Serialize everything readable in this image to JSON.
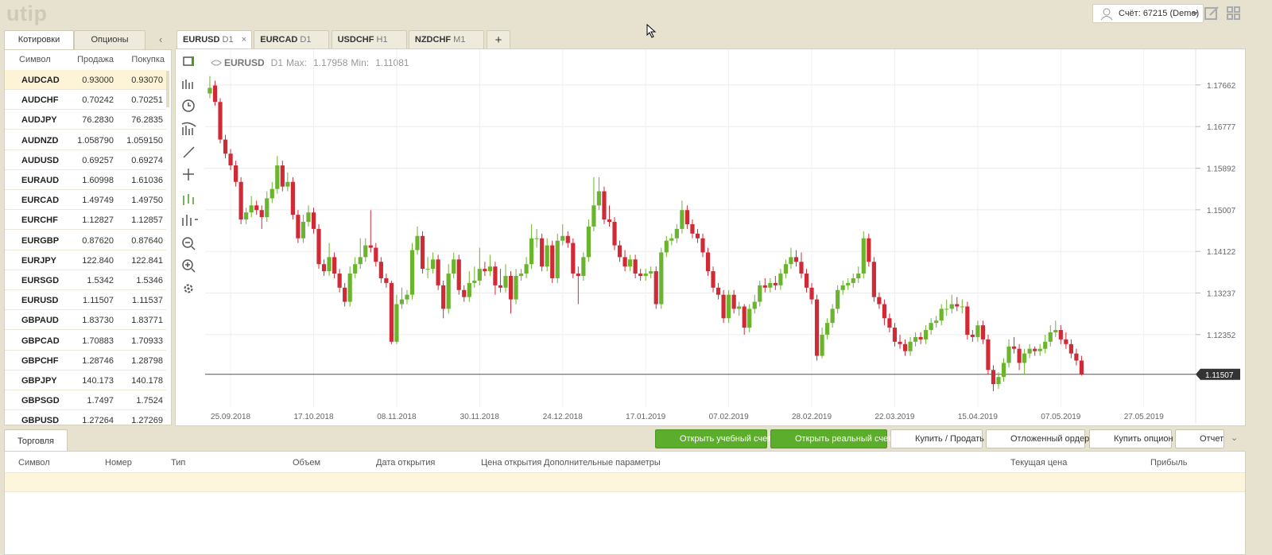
{
  "header": {
    "logo": "utip",
    "account": "Счёт: 67215 (Demo)"
  },
  "quotes": {
    "tabs": [
      "Котировки",
      "Опционы"
    ],
    "columns": [
      "Символ",
      "Продажа",
      "Покупка"
    ],
    "rows": [
      {
        "symbol": "AUDCAD",
        "sell": "0.93000",
        "buy": "0.93070",
        "trend": "down"
      },
      {
        "symbol": "AUDCHF",
        "sell": "0.70242",
        "buy": "0.70251",
        "trend": "down"
      },
      {
        "symbol": "AUDJPY",
        "sell": "76.2830",
        "buy": "76.2835",
        "trend": "down"
      },
      {
        "symbol": "AUDNZD",
        "sell": "1.058790",
        "buy": "1.059150",
        "trend": "down"
      },
      {
        "symbol": "AUDUSD",
        "sell": "0.69257",
        "buy": "0.69274",
        "trend": "down"
      },
      {
        "symbol": "EURAUD",
        "sell": "1.60998",
        "buy": "1.61036",
        "trend": "down"
      },
      {
        "symbol": "EURCAD",
        "sell": "1.49749",
        "buy": "1.49750",
        "trend": "up"
      },
      {
        "symbol": "EURCHF",
        "sell": "1.12827",
        "buy": "1.12857",
        "trend": "up"
      },
      {
        "symbol": "EURGBP",
        "sell": "0.87620",
        "buy": "0.87640",
        "trend": "up"
      },
      {
        "symbol": "EURJPY",
        "sell": "122.840",
        "buy": "122.841",
        "trend": null
      },
      {
        "symbol": "EURSGD",
        "sell": "1.5342",
        "buy": "1.5346",
        "trend": null
      },
      {
        "symbol": "EURUSD",
        "sell": "1.11507",
        "buy": "1.11537",
        "trend": null
      },
      {
        "symbol": "GBPAUD",
        "sell": "1.83730",
        "buy": "1.83771",
        "trend": "up"
      },
      {
        "symbol": "GBPCAD",
        "sell": "1.70883",
        "buy": "1.70933",
        "trend": "up"
      },
      {
        "symbol": "GBPCHF",
        "sell": "1.28746",
        "buy": "1.28798",
        "trend": null
      },
      {
        "symbol": "GBPJPY",
        "sell": "140.173",
        "buy": "140.178",
        "trend": null
      },
      {
        "symbol": "GBPSGD",
        "sell": "1.7497",
        "buy": "1.7524",
        "trend": null
      },
      {
        "symbol": "GBPUSD",
        "sell": "1.27264",
        "buy": "1.27269",
        "trend": null
      }
    ]
  },
  "chart_tabs": [
    {
      "symbol": "EURUSD",
      "timeframe": "D1"
    },
    {
      "symbol": "EURCAD",
      "timeframe": "D1"
    },
    {
      "symbol": "USDCHF",
      "timeframe": "H1"
    },
    {
      "symbol": "NZDCHF",
      "timeframe": "M1"
    }
  ],
  "new_tab": "+",
  "chart_data": {
    "type": "candlestick",
    "symbol": "EURUSD",
    "timeframe": "D1",
    "max_label": "Max:",
    "max": 1.17958,
    "min_label": "Min:",
    "min": 1.11081,
    "up_color": "#6ab42e",
    "down_color": "#d12a37",
    "grid": true,
    "ylim": [
      1.1081,
      1.1842
    ],
    "yticks": [
      1.17662,
      1.16777,
      1.15892,
      1.15007,
      1.14122,
      1.13237,
      1.12352
    ],
    "xlim": [
      -0.3,
      190
    ],
    "xticks": [
      {
        "value": 4,
        "label": "25.09.2018"
      },
      {
        "value": 20,
        "label": "17.10.2018"
      },
      {
        "value": 36,
        "label": "08.11.2018"
      },
      {
        "value": 52,
        "label": "30.11.2018"
      },
      {
        "value": 68,
        "label": "24.12.2018"
      },
      {
        "value": 84,
        "label": "17.01.2019"
      },
      {
        "value": 100,
        "label": "07.02.2019"
      },
      {
        "value": 116,
        "label": "28.02.2019"
      },
      {
        "value": 132,
        "label": "22.03.2019"
      },
      {
        "value": 148,
        "label": "15.04.2019"
      },
      {
        "value": 164,
        "label": "07.05.2019"
      },
      {
        "value": 180,
        "label": "27.05.2019"
      }
    ],
    "current_price": 1.11507,
    "candles": [
      [
        1.1748,
        1.1785,
        1.1738,
        1.176
      ],
      [
        1.1765,
        1.1775,
        1.1722,
        1.173
      ],
      [
        1.173,
        1.1738,
        1.1642,
        1.165
      ],
      [
        1.165,
        1.166,
        1.161,
        1.162
      ],
      [
        1.162,
        1.163,
        1.1585,
        1.1595
      ],
      [
        1.1595,
        1.1605,
        1.155,
        1.156
      ],
      [
        1.156,
        1.157,
        1.147,
        1.148
      ],
      [
        1.148,
        1.1505,
        1.147,
        1.1495
      ],
      [
        1.1495,
        1.153,
        1.1485,
        1.151
      ],
      [
        1.151,
        1.152,
        1.149,
        1.15
      ],
      [
        1.15,
        1.151,
        1.146,
        1.1485
      ],
      [
        1.1485,
        1.154,
        1.1475,
        1.1525
      ],
      [
        1.1525,
        1.156,
        1.1515,
        1.1545
      ],
      [
        1.1545,
        1.1615,
        1.1535,
        1.1595
      ],
      [
        1.1595,
        1.1605,
        1.154,
        1.155
      ],
      [
        1.155,
        1.158,
        1.154,
        1.156
      ],
      [
        1.156,
        1.157,
        1.148,
        1.149
      ],
      [
        1.149,
        1.15,
        1.143,
        1.144
      ],
      [
        1.144,
        1.149,
        1.143,
        1.1475
      ],
      [
        1.1475,
        1.151,
        1.1465,
        1.1495
      ],
      [
        1.1495,
        1.1505,
        1.145,
        1.146
      ],
      [
        1.146,
        1.147,
        1.1375,
        1.1385
      ],
      [
        1.1385,
        1.1395,
        1.136,
        1.137
      ],
      [
        1.137,
        1.143,
        1.136,
        1.14
      ],
      [
        1.14,
        1.141,
        1.1355,
        1.1365
      ],
      [
        1.1365,
        1.1375,
        1.1325,
        1.1335
      ],
      [
        1.1335,
        1.1345,
        1.1295,
        1.1305
      ],
      [
        1.1305,
        1.138,
        1.1295,
        1.1365
      ],
      [
        1.1365,
        1.14,
        1.1355,
        1.1385
      ],
      [
        1.1385,
        1.144,
        1.1375,
        1.14
      ],
      [
        1.14,
        1.144,
        1.139,
        1.1425
      ],
      [
        1.1425,
        1.15,
        1.141,
        1.142
      ],
      [
        1.142,
        1.143,
        1.138,
        1.139
      ],
      [
        1.139,
        1.14,
        1.1345,
        1.1355
      ],
      [
        1.1355,
        1.1365,
        1.1335,
        1.1345
      ],
      [
        1.1345,
        1.135,
        1.1215,
        1.122
      ],
      [
        1.122,
        1.132,
        1.1215,
        1.13
      ],
      [
        1.13,
        1.1335,
        1.129,
        1.131
      ],
      [
        1.131,
        1.133,
        1.13,
        1.132
      ],
      [
        1.132,
        1.143,
        1.131,
        1.1415
      ],
      [
        1.1415,
        1.1465,
        1.1405,
        1.1445
      ],
      [
        1.1445,
        1.1455,
        1.1365,
        1.1375
      ],
      [
        1.1375,
        1.14,
        1.1355,
        1.1375
      ],
      [
        1.1375,
        1.141,
        1.1365,
        1.1395
      ],
      [
        1.1395,
        1.1405,
        1.133,
        1.134
      ],
      [
        1.134,
        1.135,
        1.127,
        1.129
      ],
      [
        1.129,
        1.1385,
        1.128,
        1.1365
      ],
      [
        1.1365,
        1.141,
        1.1355,
        1.1395
      ],
      [
        1.1395,
        1.1405,
        1.132,
        1.133
      ],
      [
        1.133,
        1.134,
        1.1305,
        1.1315
      ],
      [
        1.1315,
        1.137,
        1.1305,
        1.1345
      ],
      [
        1.1345,
        1.138,
        1.1335,
        1.135
      ],
      [
        1.135,
        1.142,
        1.134,
        1.1375
      ],
      [
        1.1375,
        1.139,
        1.136,
        1.137
      ],
      [
        1.137,
        1.1405,
        1.136,
        1.138
      ],
      [
        1.138,
        1.139,
        1.132,
        1.134
      ],
      [
        1.134,
        1.1375,
        1.1325,
        1.1335
      ],
      [
        1.1335,
        1.1385,
        1.1325,
        1.136
      ],
      [
        1.136,
        1.137,
        1.128,
        1.131
      ],
      [
        1.131,
        1.1375,
        1.13,
        1.136
      ],
      [
        1.136,
        1.1375,
        1.135,
        1.1365
      ],
      [
        1.1365,
        1.14,
        1.1355,
        1.1385
      ],
      [
        1.1385,
        1.147,
        1.1375,
        1.144
      ],
      [
        1.144,
        1.146,
        1.142,
        1.144
      ],
      [
        1.144,
        1.145,
        1.137,
        1.138
      ],
      [
        1.138,
        1.144,
        1.137,
        1.1425
      ],
      [
        1.1425,
        1.1435,
        1.1345,
        1.1355
      ],
      [
        1.1355,
        1.145,
        1.1345,
        1.1435
      ],
      [
        1.1435,
        1.147,
        1.1425,
        1.1445
      ],
      [
        1.1445,
        1.1455,
        1.142,
        1.143
      ],
      [
        1.143,
        1.144,
        1.1355,
        1.1365
      ],
      [
        1.1365,
        1.138,
        1.13,
        1.136
      ],
      [
        1.136,
        1.141,
        1.135,
        1.14
      ],
      [
        1.14,
        1.148,
        1.139,
        1.1465
      ],
      [
        1.1465,
        1.157,
        1.1455,
        1.151
      ],
      [
        1.151,
        1.157,
        1.15,
        1.154
      ],
      [
        1.154,
        1.155,
        1.147,
        1.148
      ],
      [
        1.148,
        1.151,
        1.1465,
        1.1475
      ],
      [
        1.1475,
        1.1485,
        1.1415,
        1.1425
      ],
      [
        1.1425,
        1.1435,
        1.139,
        1.14
      ],
      [
        1.14,
        1.1415,
        1.137,
        1.138
      ],
      [
        1.138,
        1.1405,
        1.137,
        1.1395
      ],
      [
        1.1395,
        1.1405,
        1.1355,
        1.1365
      ],
      [
        1.1365,
        1.1375,
        1.135,
        1.136
      ],
      [
        1.136,
        1.1375,
        1.135,
        1.1365
      ],
      [
        1.1365,
        1.138,
        1.1355,
        1.137
      ],
      [
        1.137,
        1.138,
        1.129,
        1.13
      ],
      [
        1.13,
        1.142,
        1.129,
        1.141
      ],
      [
        1.141,
        1.1445,
        1.14,
        1.1435
      ],
      [
        1.1435,
        1.145,
        1.1425,
        1.144
      ],
      [
        1.144,
        1.147,
        1.143,
        1.146
      ],
      [
        1.146,
        1.152,
        1.145,
        1.15
      ],
      [
        1.15,
        1.151,
        1.146,
        1.147
      ],
      [
        1.147,
        1.148,
        1.144,
        1.145
      ],
      [
        1.145,
        1.146,
        1.143,
        1.144
      ],
      [
        1.144,
        1.145,
        1.14,
        1.141
      ],
      [
        1.141,
        1.142,
        1.136,
        1.137
      ],
      [
        1.137,
        1.138,
        1.1325,
        1.1335
      ],
      [
        1.1335,
        1.1345,
        1.131,
        1.132
      ],
      [
        1.132,
        1.133,
        1.126,
        1.127
      ],
      [
        1.127,
        1.133,
        1.126,
        1.132
      ],
      [
        1.132,
        1.133,
        1.128,
        1.129
      ],
      [
        1.129,
        1.1305,
        1.1275,
        1.1295
      ],
      [
        1.1295,
        1.13,
        1.1235,
        1.125
      ],
      [
        1.125,
        1.13,
        1.124,
        1.129
      ],
      [
        1.129,
        1.132,
        1.128,
        1.1305
      ],
      [
        1.1305,
        1.135,
        1.1295,
        1.134
      ],
      [
        1.134,
        1.1355,
        1.1325,
        1.1335
      ],
      [
        1.1335,
        1.1355,
        1.1325,
        1.1345
      ],
      [
        1.1345,
        1.136,
        1.133,
        1.134
      ],
      [
        1.134,
        1.1375,
        1.133,
        1.1365
      ],
      [
        1.1365,
        1.1395,
        1.1355,
        1.1385
      ],
      [
        1.1385,
        1.142,
        1.1375,
        1.14
      ],
      [
        1.14,
        1.1415,
        1.138,
        1.139
      ],
      [
        1.139,
        1.141,
        1.1355,
        1.1365
      ],
      [
        1.1365,
        1.1375,
        1.1325,
        1.1335
      ],
      [
        1.1335,
        1.1345,
        1.13,
        1.131
      ],
      [
        1.131,
        1.132,
        1.118,
        1.119
      ],
      [
        1.119,
        1.125,
        1.1185,
        1.1235
      ],
      [
        1.1235,
        1.127,
        1.1225,
        1.126
      ],
      [
        1.126,
        1.13,
        1.125,
        1.129
      ],
      [
        1.129,
        1.134,
        1.128,
        1.133
      ],
      [
        1.133,
        1.135,
        1.132,
        1.134
      ],
      [
        1.134,
        1.1355,
        1.133,
        1.1345
      ],
      [
        1.1345,
        1.1365,
        1.1335,
        1.1355
      ],
      [
        1.1355,
        1.138,
        1.1345,
        1.1365
      ],
      [
        1.1365,
        1.1455,
        1.1355,
        1.144
      ],
      [
        1.144,
        1.145,
        1.138,
        1.139
      ],
      [
        1.139,
        1.14,
        1.1305,
        1.1315
      ],
      [
        1.1315,
        1.1325,
        1.129,
        1.13
      ],
      [
        1.13,
        1.131,
        1.1255,
        1.127
      ],
      [
        1.127,
        1.128,
        1.124,
        1.125
      ],
      [
        1.125,
        1.126,
        1.121,
        1.122
      ],
      [
        1.122,
        1.1235,
        1.1205,
        1.1215
      ],
      [
        1.1215,
        1.1225,
        1.119,
        1.12
      ],
      [
        1.12,
        1.123,
        1.119,
        1.122
      ],
      [
        1.122,
        1.124,
        1.121,
        1.123
      ],
      [
        1.123,
        1.124,
        1.1215,
        1.1225
      ],
      [
        1.1225,
        1.1255,
        1.1215,
        1.1245
      ],
      [
        1.1245,
        1.127,
        1.1235,
        1.126
      ],
      [
        1.126,
        1.1275,
        1.125,
        1.1265
      ],
      [
        1.1265,
        1.13,
        1.1255,
        1.129
      ],
      [
        1.129,
        1.131,
        1.1275,
        1.129
      ],
      [
        1.129,
        1.132,
        1.128,
        1.13
      ],
      [
        1.13,
        1.1315,
        1.1285,
        1.1295
      ],
      [
        1.1295,
        1.131,
        1.128,
        1.1295
      ],
      [
        1.1295,
        1.1305,
        1.1225,
        1.1235
      ],
      [
        1.1235,
        1.1245,
        1.122,
        1.123
      ],
      [
        1.123,
        1.1265,
        1.122,
        1.1255
      ],
      [
        1.1255,
        1.1265,
        1.1215,
        1.1225
      ],
      [
        1.1225,
        1.1235,
        1.115,
        1.116
      ],
      [
        1.116,
        1.117,
        1.1115,
        1.113
      ],
      [
        1.113,
        1.1155,
        1.112,
        1.1145
      ],
      [
        1.1145,
        1.1185,
        1.1135,
        1.1175
      ],
      [
        1.1175,
        1.1225,
        1.1165,
        1.121
      ],
      [
        1.121,
        1.123,
        1.1195,
        1.1205
      ],
      [
        1.1205,
        1.1215,
        1.116,
        1.1175
      ],
      [
        1.1175,
        1.1205,
        1.115,
        1.1195
      ],
      [
        1.1195,
        1.1215,
        1.1185,
        1.1205
      ],
      [
        1.1205,
        1.121,
        1.119,
        1.12
      ],
      [
        1.12,
        1.1215,
        1.119,
        1.1205
      ],
      [
        1.1205,
        1.1235,
        1.1195,
        1.122
      ],
      [
        1.122,
        1.1255,
        1.121,
        1.124
      ],
      [
        1.124,
        1.1265,
        1.123,
        1.1245
      ],
      [
        1.1245,
        1.1255,
        1.1215,
        1.1225
      ],
      [
        1.1225,
        1.124,
        1.1205,
        1.1215
      ],
      [
        1.1215,
        1.1225,
        1.1185,
        1.1195
      ],
      [
        1.1195,
        1.1205,
        1.117,
        1.118
      ],
      [
        1.118,
        1.119,
        1.1148,
        1.1151
      ]
    ]
  },
  "trading": {
    "tab": "Торговля",
    "buttons": [
      {
        "label": "Открыть учебный счет",
        "style": "green"
      },
      {
        "label": "Открыть реальный счет",
        "style": "green"
      },
      {
        "label": "Купить / Продать",
        "style": "plain"
      },
      {
        "label": "Отложенный ордер",
        "style": "plain"
      },
      {
        "label": "Купить опцион",
        "style": "plain"
      },
      {
        "label": "Отчет",
        "style": "plain"
      }
    ],
    "columns": [
      "Символ",
      "Номер",
      "Тип",
      "Объем",
      "Дата открытия",
      "Цена открытия",
      "Дополнительные параметры",
      "Текущая цена",
      "Прибыль"
    ]
  }
}
